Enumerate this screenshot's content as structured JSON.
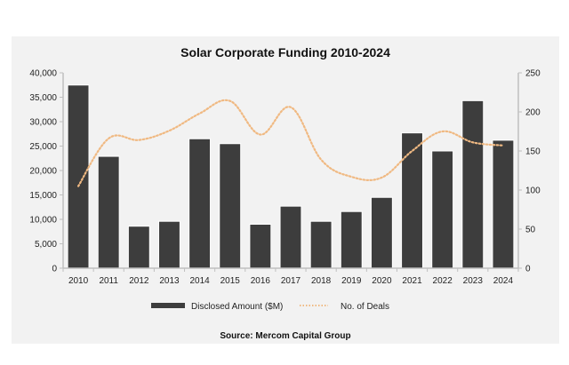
{
  "chart_data": {
    "type": "bar",
    "title": "Solar Corporate Funding 2010-2024",
    "categories": [
      "2010",
      "2011",
      "2012",
      "2013",
      "2014",
      "2015",
      "2016",
      "2017",
      "2018",
      "2019",
      "2020",
      "2021",
      "2022",
      "2023",
      "2024"
    ],
    "series": [
      {
        "name": "Disclosed Amount ($M)",
        "type": "bar",
        "axis": "left",
        "color": "#3d3d3d",
        "values": [
          37500,
          22900,
          8600,
          9600,
          26500,
          25500,
          9000,
          12700,
          9600,
          11600,
          14500,
          27700,
          24000,
          34300,
          26200
        ]
      },
      {
        "name": "No. of Deals",
        "type": "line",
        "style": "dotted",
        "axis": "right",
        "color": "#f0b982",
        "values": [
          105,
          166,
          164,
          176,
          198,
          214,
          171,
          206,
          139,
          117,
          116,
          150,
          175,
          161,
          157
        ]
      }
    ],
    "y_left": {
      "ylim": [
        0,
        40000
      ],
      "ticks": [
        0,
        5000,
        10000,
        15000,
        20000,
        25000,
        30000,
        35000,
        40000
      ],
      "tick_labels": [
        "0",
        "5,000",
        "10,000",
        "15,000",
        "20,000",
        "25,000",
        "30,000",
        "35,000",
        "40,000"
      ]
    },
    "y_right": {
      "ylim": [
        0,
        250
      ],
      "ticks": [
        0,
        50,
        100,
        150,
        200,
        250
      ],
      "tick_labels": [
        "0",
        "50",
        "100",
        "150",
        "200",
        "250"
      ]
    },
    "xlabel": "",
    "ylabel": "",
    "grid": false,
    "legend": {
      "placement": "bottom",
      "entries": [
        "Disclosed Amount ($M)",
        "No. of Deals"
      ]
    },
    "source": "Source: Mercom Capital Group"
  }
}
